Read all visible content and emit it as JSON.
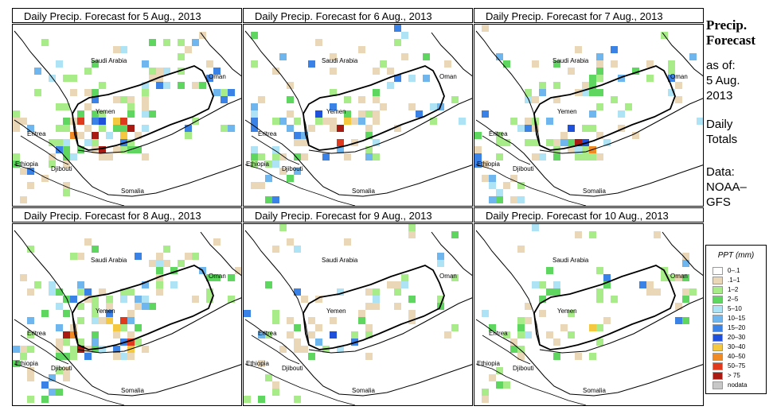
{
  "sidebar": {
    "title_line1": "Precip.",
    "title_line2": "Forecast",
    "asof_line1": "as of:",
    "asof_line2": "5 Aug.",
    "asof_line3": "2013",
    "totals_line1": "Daily",
    "totals_line2": "Totals",
    "data_line1": "Data:",
    "data_line2": "NOAA–",
    "data_line3": "GFS"
  },
  "legend": {
    "title": "PPT (mm)",
    "items": [
      {
        "label": "0–.1",
        "color": "#ffffff"
      },
      {
        "label": ".1–1",
        "color": "#ead7b7"
      },
      {
        "label": "1–2",
        "color": "#a8ec8a"
      },
      {
        "label": "2–5",
        "color": "#5fd65f"
      },
      {
        "label": "5–10",
        "color": "#aee3f5"
      },
      {
        "label": "10–15",
        "color": "#6fb6ef"
      },
      {
        "label": "15–20",
        "color": "#3b82e6"
      },
      {
        "label": "20–30",
        "color": "#1e50dc"
      },
      {
        "label": "30–40",
        "color": "#f5c842"
      },
      {
        "label": "40–50",
        "color": "#f08a24"
      },
      {
        "label": "50–75",
        "color": "#e03a1e"
      },
      {
        "label": "> 75",
        "color": "#a81a12"
      },
      {
        "label": "nodata",
        "color": "#c8c8c8"
      }
    ]
  },
  "place_names": {
    "saudi": "Saudi Arabia",
    "oman": "Oman",
    "yemen": "Yemen",
    "eritrea": "Eritrea",
    "ethiopia": "Ethiopia",
    "djibouti": "Djibouti",
    "somalia": "Somalia"
  },
  "panels": [
    {
      "title": "Daily Precip. Forecast for  5 Aug., 2013",
      "intensity": "high"
    },
    {
      "title": "Daily Precip. Forecast for  6 Aug., 2013",
      "intensity": "medium"
    },
    {
      "title": "Daily Precip. Forecast for  7 Aug., 2013",
      "intensity": "medium"
    },
    {
      "title": "Daily Precip. Forecast for  8 Aug., 2013",
      "intensity": "high"
    },
    {
      "title": "Daily Precip. Forecast for  9 Aug., 2013",
      "intensity": "low"
    },
    {
      "title": "Daily Precip. Forecast for  10 Aug., 2013",
      "intensity": "low"
    }
  ]
}
